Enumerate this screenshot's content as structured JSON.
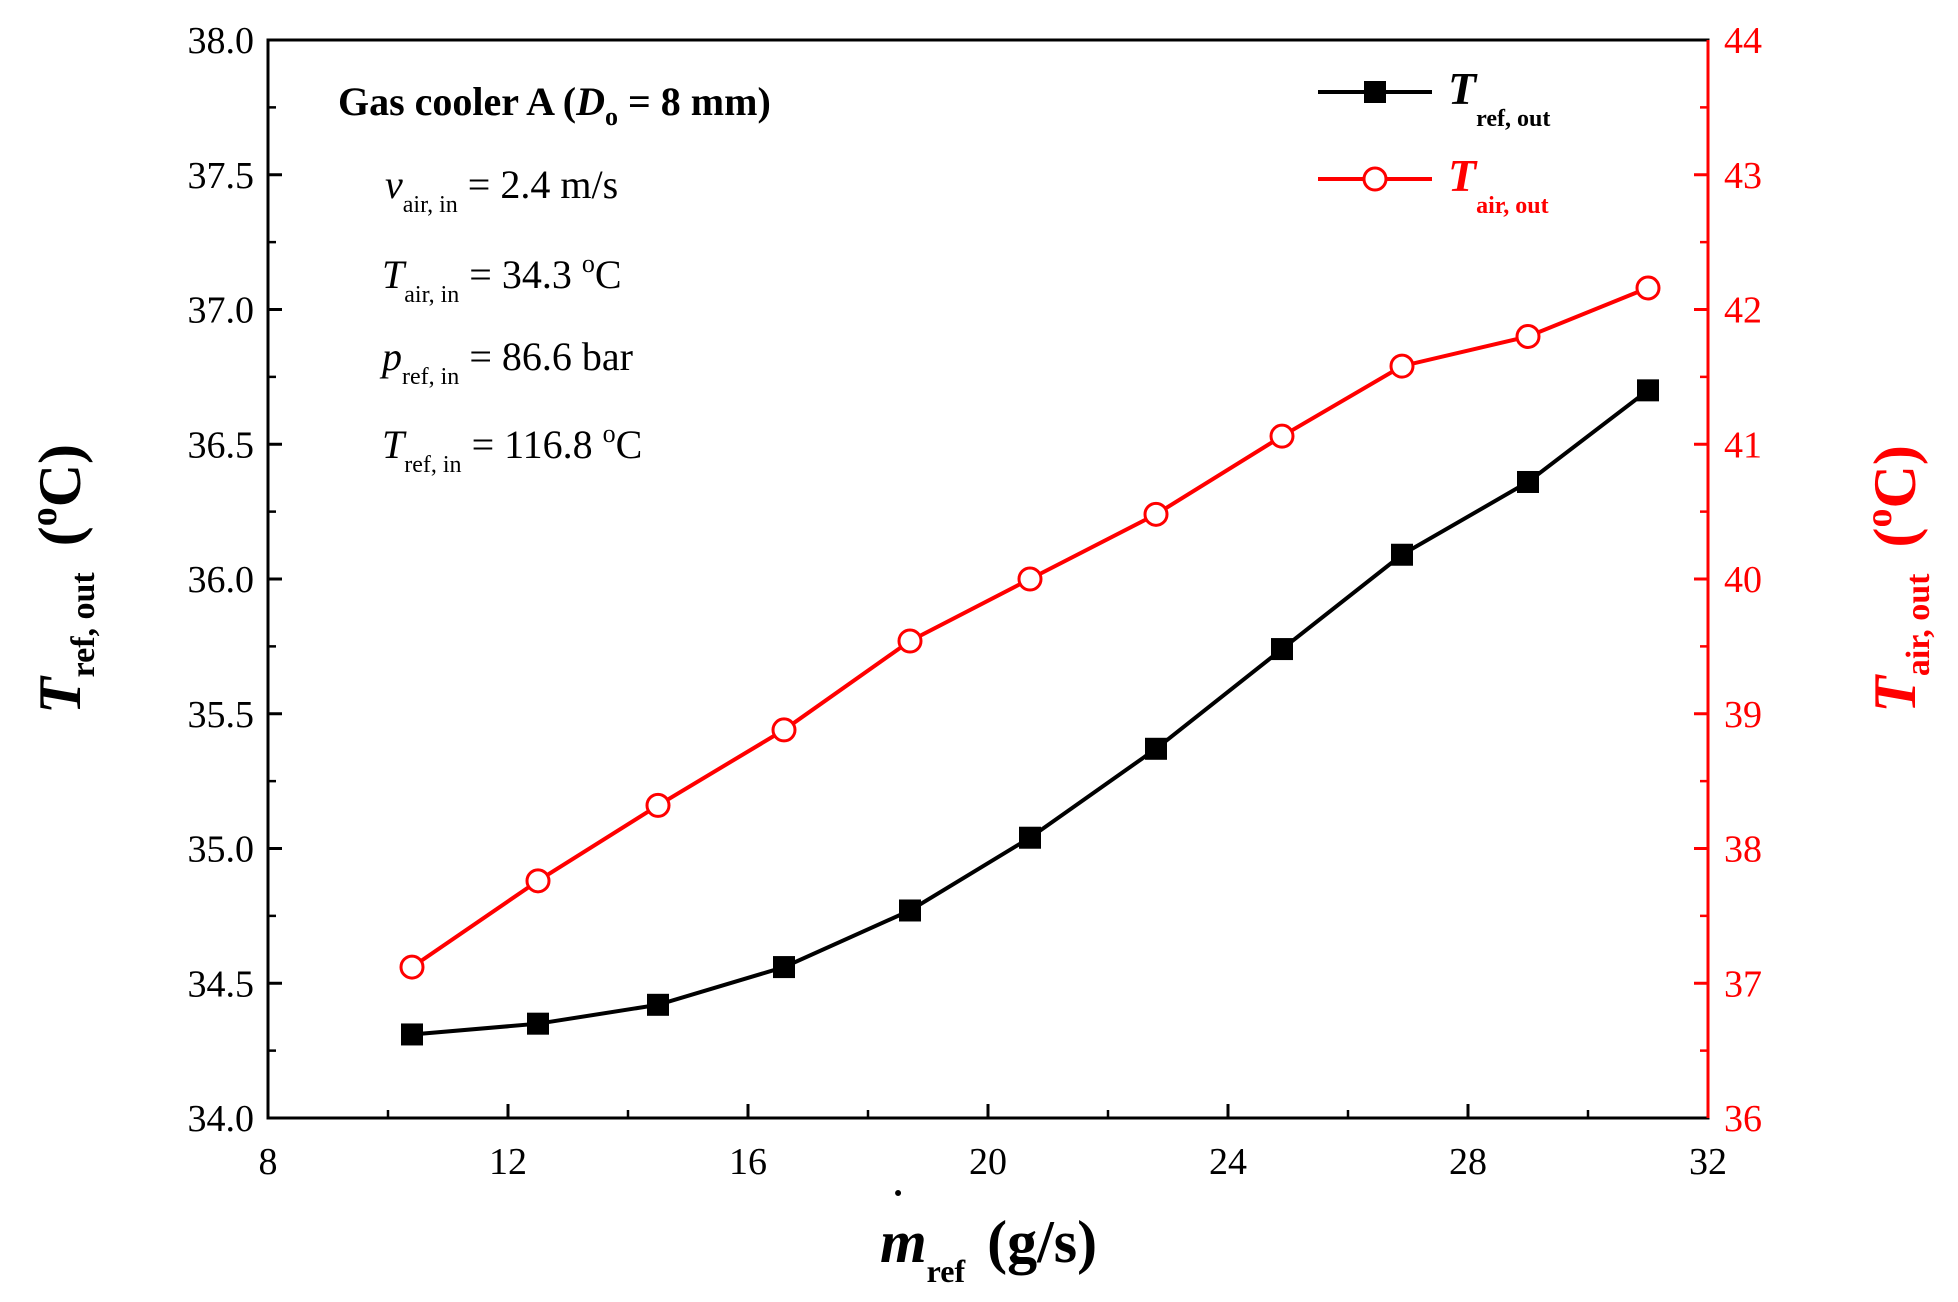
{
  "chart_data": {
    "type": "line",
    "title": "",
    "x": [
      10.4,
      12.5,
      14.5,
      16.6,
      18.7,
      20.7,
      22.8,
      24.9,
      26.9,
      29.0,
      31.0
    ],
    "xlim": [
      8,
      32
    ],
    "xticks": [
      8,
      12,
      16,
      20,
      24,
      28,
      32
    ],
    "xtick_labels": [
      "8",
      "12",
      "16",
      "20",
      "24",
      "28",
      "32"
    ],
    "xlabel": {
      "sym": "m",
      "sub": "ref",
      "unit": "(g/s)"
    },
    "ylim_left": [
      34.0,
      38.0
    ],
    "yticks_left": [
      "34.0",
      "34.5",
      "35.0",
      "35.5",
      "36.0",
      "36.5",
      "37.0",
      "37.5",
      "38.0"
    ],
    "ylabel_left": {
      "sym": "T",
      "sub": "ref, out",
      "unit_open": "(",
      "unit_sup": "o",
      "unit_close": "C)"
    },
    "ylim_right": [
      36,
      44
    ],
    "yticks_right": [
      "36",
      "37",
      "38",
      "39",
      "40",
      "41",
      "42",
      "43",
      "44"
    ],
    "ylabel_right": {
      "sym": "T",
      "sub": "air, out",
      "unit_open": "(",
      "unit_sup": "o",
      "unit_close": "C)"
    },
    "series": [
      {
        "name": "T ref, out",
        "axis": "left",
        "color": "#000000",
        "marker": "filled-square",
        "values": [
          34.31,
          34.35,
          34.42,
          34.56,
          34.77,
          35.04,
          35.37,
          35.74,
          36.09,
          36.36,
          36.7
        ]
      },
      {
        "name": "T air, out",
        "axis": "right",
        "color": "#ff0000",
        "marker": "open-circle",
        "values": [
          37.12,
          37.76,
          38.32,
          38.88,
          39.54,
          40.0,
          40.48,
          41.06,
          41.58,
          41.8,
          42.16
        ]
      }
    ],
    "legend": {
      "position": "top-right",
      "entries": [
        {
          "sym": "T",
          "sub": "ref, out",
          "color": "#000000"
        },
        {
          "sym": "T",
          "sub": "air, out",
          "color": "#ff0000"
        }
      ]
    },
    "annotations": {
      "title": {
        "pre": "Gas cooler A (",
        "sym": "D",
        "sub": "o",
        "post": " = 8 mm)"
      },
      "lines": [
        {
          "sym": "v",
          "sub": "air, in",
          "rest": " = 2.4 m/s",
          "sup": ""
        },
        {
          "sym": "T",
          "sub": "air, in",
          "rest": " = 34.3 ",
          "sup": "o",
          "tail": "C"
        },
        {
          "sym": "p",
          "sub": "ref, in",
          "rest": " = 86.6 bar",
          "sup": ""
        },
        {
          "sym": "T",
          "sub": "ref, in",
          "rest": " = 116.8 ",
          "sup": "o",
          "tail": "C"
        }
      ]
    }
  }
}
